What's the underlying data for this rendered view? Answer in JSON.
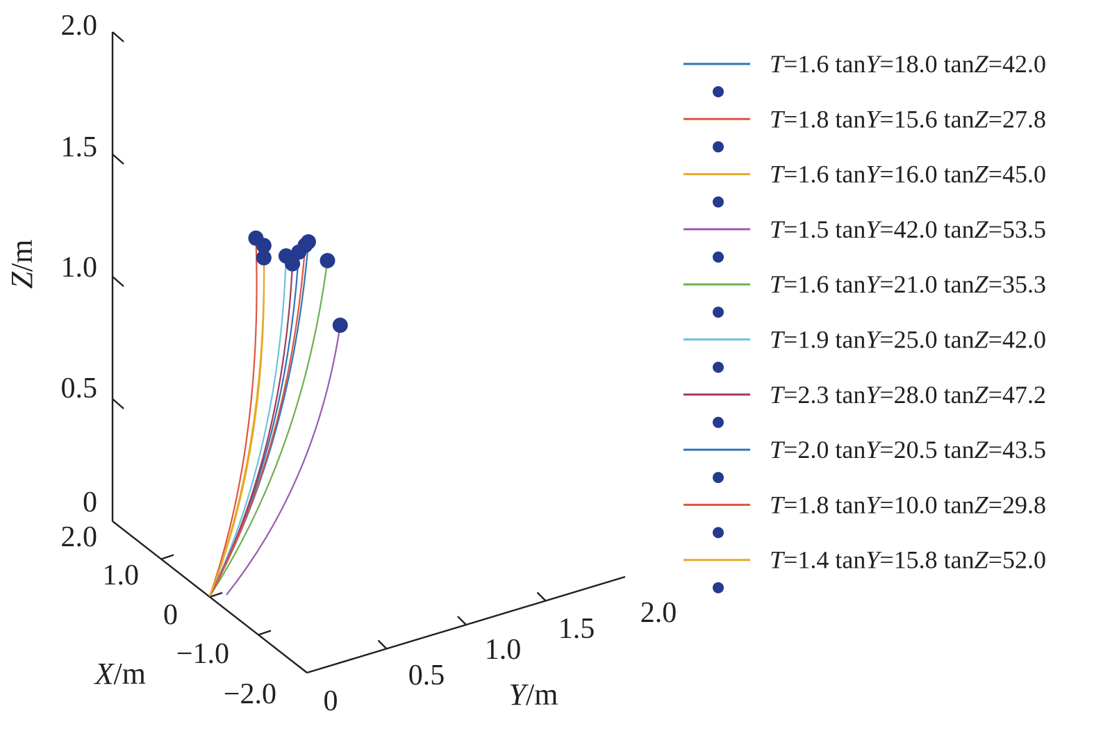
{
  "chart_data": {
    "type": "line3d",
    "axes": {
      "x": {
        "label_var": "X",
        "label_unit": "/m",
        "ticks": [
          "2.0",
          "1.0",
          "0",
          "−1.0",
          "−2.0"
        ]
      },
      "y": {
        "label_var": "Y",
        "label_unit": "/m",
        "ticks": [
          "0",
          "0.5",
          "1.0",
          "1.5",
          "2.0"
        ]
      },
      "z": {
        "label_var": "Z",
        "label_unit": "/m",
        "ticks": [
          "2.0",
          "1.5",
          "1.0",
          "0.5",
          "0"
        ]
      }
    },
    "series": [
      {
        "t_label": "T",
        "t_value": "=1.6 tan",
        "y_label": "Y",
        "y_value": "=18.0 tan",
        "z_label": "Z",
        "z_value": "=42.0",
        "color": "#2e75b6",
        "end_y": 0.56,
        "end_z": 1.3
      },
      {
        "t_label": "T",
        "t_value": "=1.8 tan",
        "y_label": "Y",
        "y_value": "=15.6 tan",
        "z_label": "Z",
        "z_value": "=27.8",
        "color": "#e0553f",
        "end_y": 0.29,
        "end_z": 1.41
      },
      {
        "t_label": "T",
        "t_value": "=1.6 tan",
        "y_label": "Y",
        "y_value": "=16.0 tan",
        "z_label": "Z",
        "z_value": "=45.0",
        "color": "#e8a72a",
        "end_y": 0.34,
        "end_z": 1.32
      },
      {
        "t_label": "T",
        "t_value": "=1.5 tan",
        "y_label": "Y",
        "y_value": "=42.0 tan",
        "z_label": "Z",
        "z_value": "=53.5",
        "color": "#9b59b6",
        "end_y": 0.82,
        "end_z": 0.95
      },
      {
        "t_label": "T",
        "t_value": "=1.6 tan",
        "y_label": "Y",
        "y_value": "=21.0 tan",
        "z_label": "Z",
        "z_value": "=35.3",
        "color": "#6ab04c",
        "end_y": 0.74,
        "end_z": 1.23
      },
      {
        "t_label": "T",
        "t_value": "=1.9 tan",
        "y_label": "Y",
        "y_value": "=25.0 tan",
        "z_label": "Z",
        "z_value": "=42.0",
        "color": "#6cc3e0",
        "end_y": 0.48,
        "end_z": 1.3
      },
      {
        "t_label": "T",
        "t_value": "=2.3 tan",
        "y_label": "Y",
        "y_value": "=28.0 tan",
        "z_label": "Z",
        "z_value": "=47.2",
        "color": "#a33a5a",
        "end_y": 0.52,
        "end_z": 1.26
      },
      {
        "t_label": "T",
        "t_value": "=2.0 tan",
        "y_label": "Y",
        "y_value": "=20.5 tan",
        "z_label": "Z",
        "z_value": "=43.5",
        "color": "#2e75b6",
        "end_y": 0.62,
        "end_z": 1.33
      },
      {
        "t_label": "T",
        "t_value": "=1.8 tan",
        "y_label": "Y",
        "y_value": "=10.0 tan",
        "z_label": "Z",
        "z_value": "=29.8",
        "color": "#e0553f",
        "end_y": 0.6,
        "end_z": 1.32
      },
      {
        "t_label": "T",
        "t_value": "=1.4 tan",
        "y_label": "Y",
        "y_value": "=15.8 tan",
        "z_label": "Z",
        "z_value": "=52.0",
        "color": "#e8a72a",
        "end_y": 0.34,
        "end_z": 1.37
      }
    ],
    "marker_color": "#233a8f",
    "legend_position": "right"
  }
}
